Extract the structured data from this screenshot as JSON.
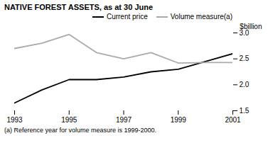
{
  "chart_data": {
    "type": "line",
    "title": "NATIVE FOREST ASSETS, as at 30 June",
    "ylabel": "$billion",
    "footnote": "(a) Reference year for volume measure is 1999-2000.",
    "x": [
      1993,
      1994,
      1995,
      1996,
      1997,
      1998,
      1999,
      2000,
      2001
    ],
    "series": [
      {
        "name": "Current price",
        "color": "#000000",
        "values": [
          1.65,
          1.9,
          2.1,
          2.1,
          2.15,
          2.25,
          2.3,
          2.45,
          2.6
        ]
      },
      {
        "name": "Volume measure(a)",
        "color": "#aaaaaa",
        "values": [
          2.7,
          2.8,
          2.97,
          2.62,
          2.5,
          2.62,
          2.42,
          2.43,
          2.43
        ]
      }
    ],
    "xlim": [
      1993,
      2001
    ],
    "xticks": [
      1993,
      1995,
      1997,
      1999,
      2001
    ],
    "ylim": [
      1.5,
      3.0
    ],
    "yticks": [
      1.5,
      {
        "value": 2,
        "label": "2.0"
      },
      2.5,
      {
        "value": 3,
        "label": "3.0"
      }
    ],
    "grid": false,
    "legend": "upper right"
  }
}
